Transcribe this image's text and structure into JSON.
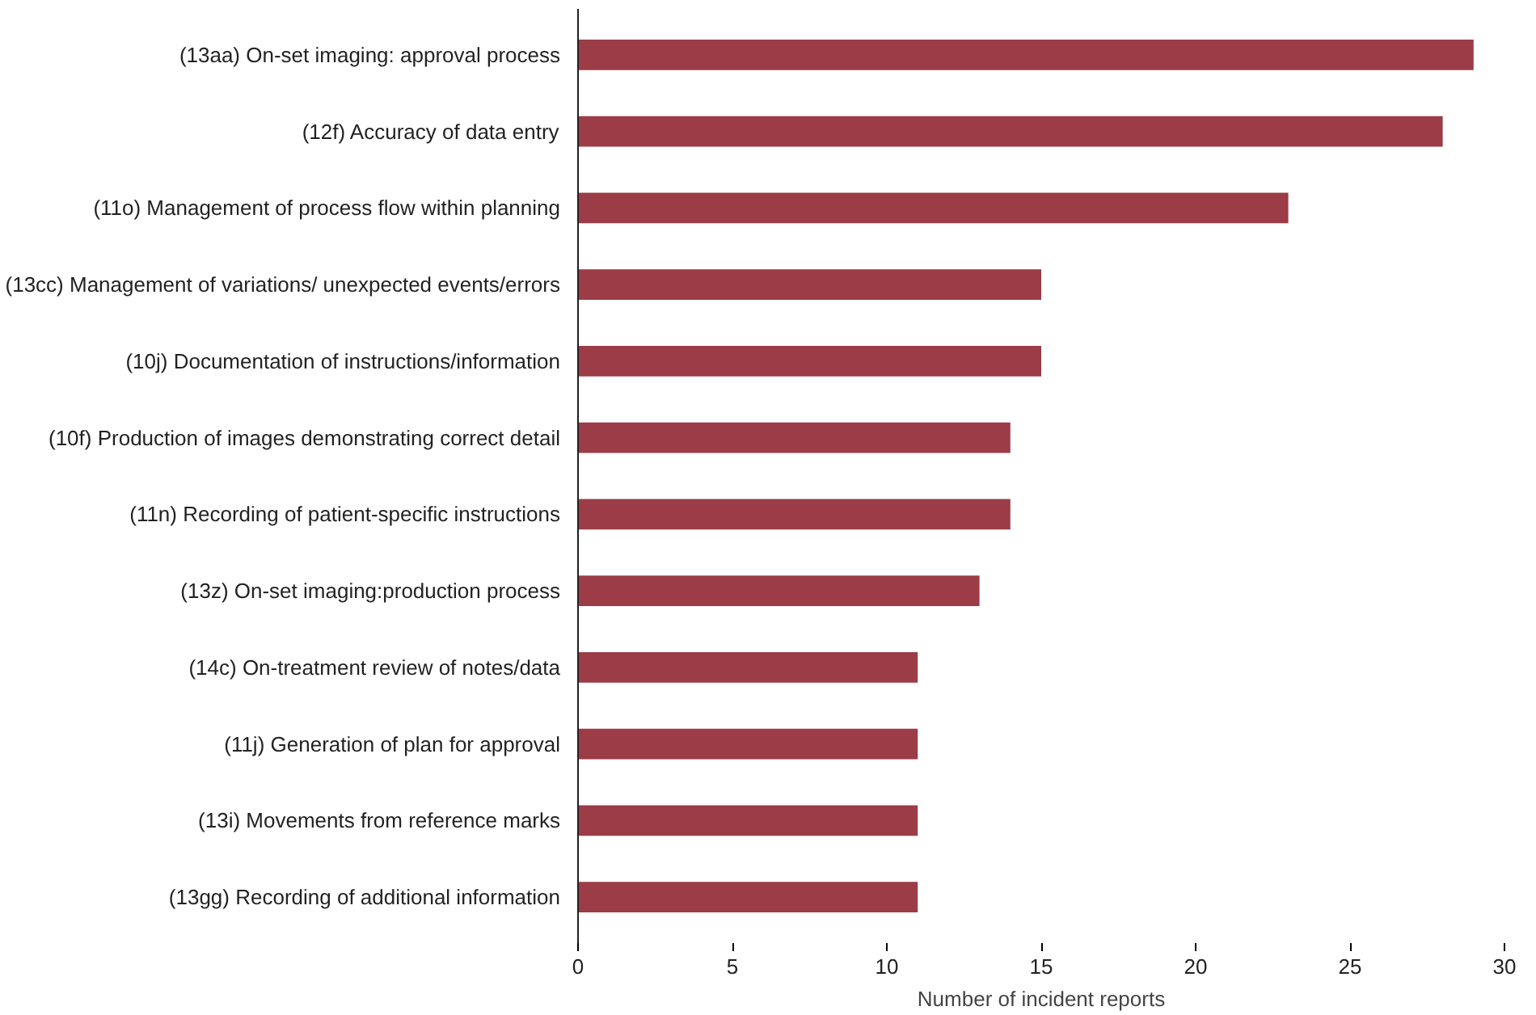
{
  "chart_data": {
    "type": "bar",
    "orientation": "horizontal",
    "xlabel": "Number of incident reports",
    "categories": [
      "(13aa) On-set imaging: approval process",
      "(12f) Accuracy of data entry",
      "(11o) Management of process flow within planning",
      "(13cc) Management of variations/ unexpected events/errors",
      "(10j) Documentation of instructions/information",
      "(10f) Production of images demonstrating correct detail",
      "(11n) Recording of patient-specific instructions",
      "(13z) On-set imaging:production process",
      "(14c) On-treatment review of notes/data",
      "(11j) Generation of plan for approval",
      "(13i) Movements from reference marks",
      "(13gg) Recording of additional information"
    ],
    "values": [
      29,
      28,
      23,
      15,
      15,
      14,
      14,
      13,
      11,
      11,
      11,
      11
    ],
    "color": "#9b3c47",
    "xlim": [
      0,
      30
    ],
    "xticks": [
      0,
      5,
      10,
      15,
      20,
      25,
      30
    ],
    "grid": false
  }
}
